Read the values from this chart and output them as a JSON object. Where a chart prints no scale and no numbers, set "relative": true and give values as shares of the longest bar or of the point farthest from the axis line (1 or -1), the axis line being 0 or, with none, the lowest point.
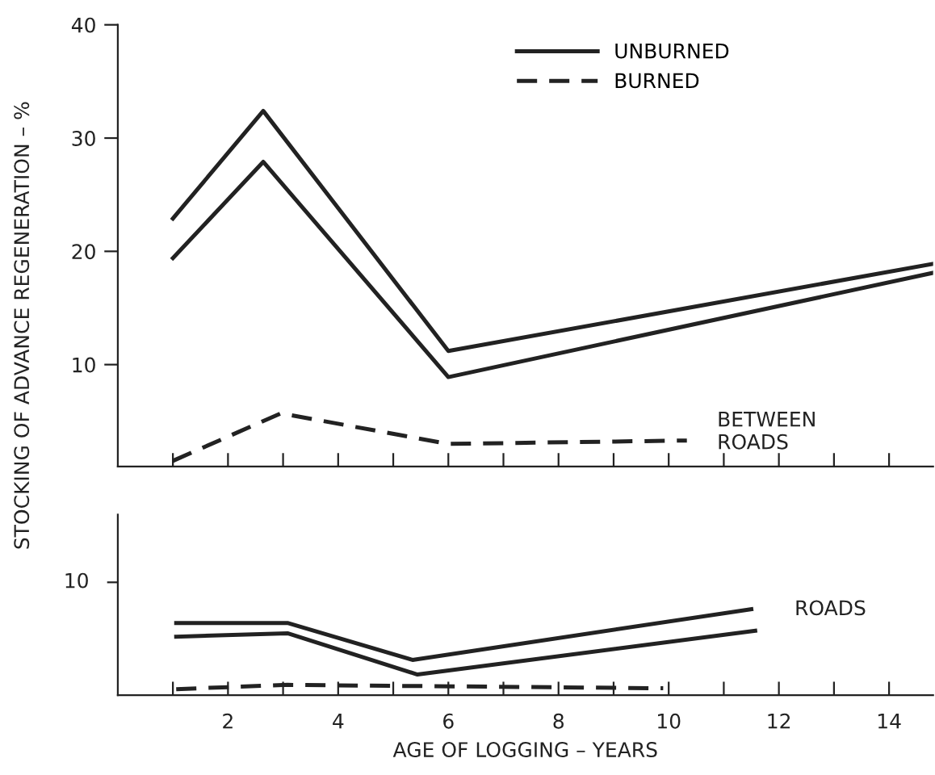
{
  "chart_data": [
    {
      "type": "line",
      "ylabel": "STOCKING OF ADVANCE REGENERATION – %",
      "xlim": [
        0,
        14.8
      ],
      "ylim": [
        1,
        40
      ],
      "xticks": [
        {
          "value": 1,
          "label": null
        },
        {
          "value": 2,
          "label": null
        },
        {
          "value": 3,
          "label": null
        },
        {
          "value": 4,
          "label": null
        },
        {
          "value": 5,
          "label": null
        },
        {
          "value": 6,
          "label": null
        },
        {
          "value": 7,
          "label": null
        },
        {
          "value": 8,
          "label": null
        },
        {
          "value": 9,
          "label": null
        },
        {
          "value": 10,
          "label": null
        },
        {
          "value": 11,
          "label": null
        },
        {
          "value": 12,
          "label": null
        },
        {
          "value": 13,
          "label": null
        },
        {
          "value": 14,
          "label": null
        }
      ],
      "yticks": [
        10,
        20,
        30,
        40
      ],
      "tick_labels": "y",
      "grid": false,
      "legend": "top",
      "marker": "none",
      "annotations": [
        "BETWEEN\nROADS"
      ],
      "series": [
        {
          "name": "UNBURNED",
          "color": "#222222",
          "line_style": "solid",
          "x": [
            1,
            2.64,
            6.0,
            14.8
          ],
          "values": [
            22.9,
            32.4,
            11.2,
            18.9
          ]
        },
        {
          "color": "#222222",
          "line_style": "solid",
          "x": [
            1,
            2.64,
            6.0,
            14.8
          ],
          "values": [
            19.4,
            27.9,
            8.9,
            18.1
          ]
        },
        {
          "name": "BURNED",
          "color": "#222222",
          "line_style": "dashed",
          "x": [
            1,
            2.96,
            6.0,
            10.33
          ],
          "values": [
            1.5,
            5.7,
            3.0,
            3.3
          ]
        }
      ]
    },
    {
      "type": "line",
      "xlabel": "AGE OF LOGGING – YEARS",
      "xlim": [
        0,
        14.8
      ],
      "relative": true,
      "xticks": [
        {
          "value": 1,
          "label": null
        },
        2,
        {
          "value": 3,
          "label": null
        },
        4,
        {
          "value": 5,
          "label": null
        },
        6,
        {
          "value": 7,
          "label": null
        },
        8,
        {
          "value": 9,
          "label": null
        },
        10,
        {
          "value": 11,
          "label": null
        },
        12,
        {
          "value": 13,
          "label": null
        },
        14
      ],
      "grid": false,
      "marker": "none",
      "annotations": [
        "ROADS",
        "10"
      ],
      "series": [
        {
          "color": "#222222",
          "line_style": "solid",
          "x": [
            1.06,
            3.08,
            5.35,
            11.5
          ],
          "values": [
            0.84,
            0.84,
            0.41,
            1.0
          ]
        },
        {
          "color": "#222222",
          "line_style": "solid",
          "x": [
            1.06,
            3.08,
            5.44,
            11.57
          ],
          "values": [
            0.68,
            0.72,
            0.24,
            0.75
          ]
        },
        {
          "color": "#222222",
          "line_style": "dashed",
          "x": [
            1.06,
            3.08,
            9.9
          ],
          "values": [
            0.07,
            0.12,
            0.08
          ]
        }
      ]
    }
  ]
}
